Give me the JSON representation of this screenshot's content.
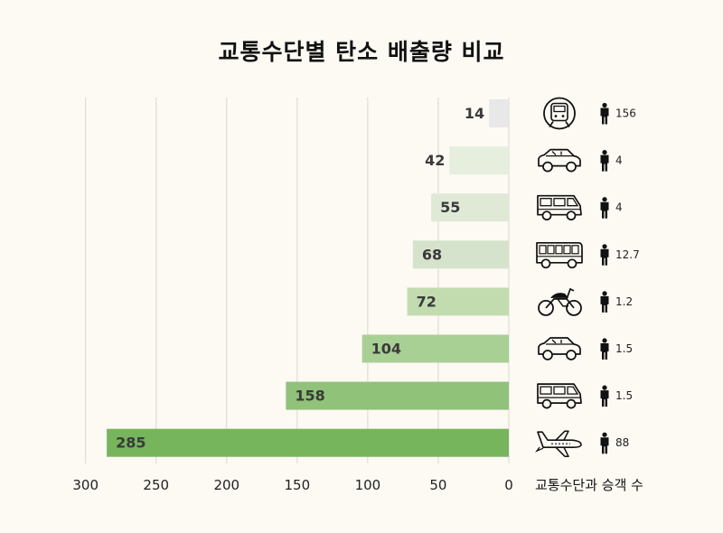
{
  "title": "교통수단별 탄소 배출량 비교",
  "footer_label": "교통수단과 승객 수",
  "chart_data": {
    "type": "bar",
    "orientation": "horizontal",
    "x_direction": "reversed",
    "xlim": [
      0,
      300
    ],
    "xticks": [
      300,
      250,
      200,
      150,
      100,
      50,
      0
    ],
    "grid": true,
    "rows": [
      {
        "value": 14,
        "icon": "train-icon",
        "passengers": "156",
        "color": "#e8e8e8"
      },
      {
        "value": 42,
        "icon": "car-icon",
        "passengers": "4",
        "color": "#e6eedd"
      },
      {
        "value": 55,
        "icon": "van-icon",
        "passengers": "4",
        "color": "#dfe9d6"
      },
      {
        "value": 68,
        "icon": "bus-icon",
        "passengers": "12.7",
        "color": "#d6e3cc"
      },
      {
        "value": 72,
        "icon": "motorcycle-icon",
        "passengers": "1.2",
        "color": "#c2dcb0"
      },
      {
        "value": 104,
        "icon": "car-icon",
        "passengers": "1.5",
        "color": "#a9d094"
      },
      {
        "value": 158,
        "icon": "van-icon",
        "passengers": "1.5",
        "color": "#90c27a"
      },
      {
        "value": 285,
        "icon": "airplane-icon",
        "passengers": "88",
        "color": "#76b55c"
      }
    ]
  }
}
